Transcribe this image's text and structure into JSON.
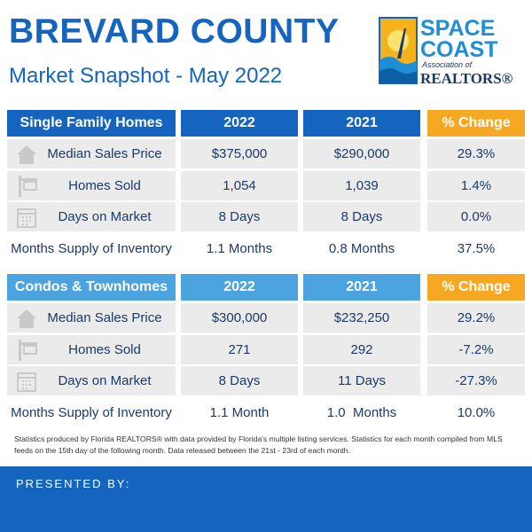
{
  "header": {
    "title": "BREVARD COUNTY",
    "subtitle": "Market Snapshot - May 2022"
  },
  "logo": {
    "line1": "SPACE",
    "line2": "COAST",
    "line3": "Association of",
    "line4": "REALTORS®"
  },
  "tables": [
    {
      "header": [
        "Single Family Homes",
        "2022",
        "2021",
        "% Change"
      ],
      "rows": [
        [
          "Median Sales Price",
          "$375,000",
          "$290,000",
          "29.3%"
        ],
        [
          "Homes Sold",
          "1,054",
          "1,039",
          "1.4%"
        ],
        [
          "Days on Market",
          "8 Days",
          "8 Days",
          "0.0%"
        ],
        [
          "Months Supply of Inventory",
          "1.1 Months",
          "0.8 Months",
          "37.5%"
        ]
      ]
    },
    {
      "header": [
        "Condos & Townhomes",
        "2022",
        "2021",
        "% Change"
      ],
      "rows": [
        [
          "Median Sales Price",
          "$300,000",
          "$232,250",
          "29.2%"
        ],
        [
          "Homes Sold",
          "271",
          "292",
          "-7.2%"
        ],
        [
          "Days on Market",
          "8 Days",
          "11 Days",
          "-27.3%"
        ],
        [
          "Months Supply of Inventory",
          "1.1 Month",
          "1.0  Months",
          "10.0%"
        ]
      ]
    }
  ],
  "footnote": "Statistics produced by Florida REALTORS® with data provided by Florida's multiple listing services. Statistics for each month compiled from MLS feeds on the 15th day of the following month. Data released between the 21st - 23rd of each month.",
  "footer": "PRESENTED BY:"
}
